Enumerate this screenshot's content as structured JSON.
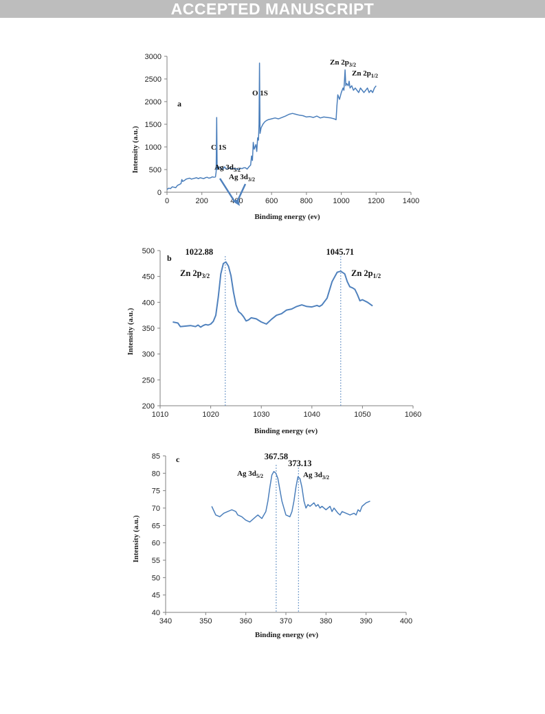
{
  "banner": {
    "text": "ACCEPTED MANUSCRIPT"
  },
  "colors": {
    "series": "#4a7ebb",
    "banner_bg": "#bdbdbd",
    "axis": "#7f7f7f"
  },
  "chart_data": [
    {
      "panel": "a",
      "type": "line",
      "xlabel": "Bindimg energy (ev)",
      "ylabel": "Intensity (a.u.)",
      "xlim": [
        0,
        1400
      ],
      "ylim": [
        0,
        3000
      ],
      "x_ticks": [
        0,
        200,
        400,
        600,
        800,
        1000,
        1200,
        1400
      ],
      "y_ticks": [
        0,
        500,
        1000,
        1500,
        2000,
        2500,
        3000
      ],
      "grid": false,
      "annotations": [
        {
          "text": "C 1S",
          "x": 285
        },
        {
          "text": "O 1S",
          "x": 531
        },
        {
          "text": "Ag 3d5/2",
          "x": 368
        },
        {
          "text": "Ag 3d3/2",
          "x": 374
        },
        {
          "text": "Zn 2p3/2",
          "x": 1022
        },
        {
          "text": "Zn 2p1/2",
          "x": 1045
        }
      ],
      "series": [
        {
          "x": [
            0,
            10,
            20,
            30,
            40,
            50,
            60,
            70,
            80,
            85,
            90,
            100,
            110,
            120,
            130,
            140,
            150,
            160,
            170,
            180,
            190,
            200,
            210,
            220,
            230,
            240,
            250,
            260,
            270,
            278,
            282,
            285,
            288,
            292,
            300,
            310,
            320,
            330,
            340,
            350,
            360,
            370,
            380,
            390,
            400,
            410,
            420,
            430,
            440,
            450,
            460,
            470,
            480,
            485,
            490,
            495,
            500,
            510,
            515,
            520,
            525,
            528,
            531,
            534,
            540,
            550,
            560,
            570,
            580,
            600,
            620,
            640,
            660,
            680,
            700,
            720,
            740,
            760,
            780,
            800,
            820,
            840,
            860,
            880,
            900,
            920,
            940,
            960,
            970,
            975,
            980,
            990,
            1000,
            1010,
            1015,
            1022,
            1026,
            1030,
            1040,
            1045,
            1050,
            1060,
            1070,
            1080,
            1090,
            1100,
            1110,
            1120,
            1130,
            1140,
            1150,
            1160,
            1170,
            1180,
            1190,
            1200
          ],
          "y": [
            60,
            90,
            80,
            120,
            110,
            100,
            150,
            170,
            190,
            280,
            240,
            260,
            290,
            300,
            310,
            290,
            300,
            310,
            320,
            300,
            320,
            310,
            300,
            320,
            330,
            310,
            320,
            340,
            330,
            340,
            450,
            1650,
            500,
            520,
            560,
            520,
            500,
            560,
            510,
            520,
            540,
            520,
            530,
            510,
            520,
            500,
            530,
            520,
            540,
            540,
            510,
            560,
            600,
            800,
            700,
            1100,
            950,
            1050,
            900,
            1200,
            1150,
            1500,
            2850,
            1300,
            1420,
            1500,
            1550,
            1580,
            1600,
            1620,
            1640,
            1620,
            1650,
            1680,
            1720,
            1740,
            1720,
            1700,
            1690,
            1660,
            1670,
            1650,
            1680,
            1640,
            1660,
            1650,
            1640,
            1620,
            1600,
            1900,
            2150,
            2050,
            2200,
            2300,
            2250,
            2700,
            2350,
            2400,
            2350,
            2450,
            2300,
            2350,
            2250,
            2300,
            2250,
            2200,
            2300,
            2250,
            2200,
            2250,
            2300,
            2200,
            2250,
            2200,
            2300,
            2350
          ]
        }
      ]
    },
    {
      "panel": "b",
      "type": "line",
      "xlabel": "Binding energy (ev)",
      "ylabel": "Intensity (a.u.)",
      "xlim": [
        1010,
        1060
      ],
      "ylim": [
        200,
        500
      ],
      "x_ticks": [
        1010,
        1020,
        1030,
        1040,
        1050,
        1060
      ],
      "y_ticks": [
        200,
        250,
        300,
        350,
        400,
        450,
        500
      ],
      "grid": false,
      "peaks": [
        {
          "x": 1022.88,
          "label": "1022.88"
        },
        {
          "x": 1045.71,
          "label": "1045.71"
        }
      ],
      "annotations": [
        {
          "text": "Zn 2p3/2"
        },
        {
          "text": "Zn 2p1/2"
        }
      ],
      "series": [
        {
          "x": [
            1012.5,
            1013.5,
            1014,
            1015,
            1016,
            1017,
            1017.5,
            1018,
            1018.5,
            1019,
            1019.5,
            1020,
            1020.5,
            1021,
            1021.5,
            1022,
            1022.5,
            1023,
            1023.5,
            1024,
            1024.5,
            1025,
            1025.5,
            1026,
            1026.5,
            1027,
            1027.5,
            1028,
            1029,
            1030,
            1030.5,
            1031,
            1032,
            1033,
            1034,
            1035,
            1036,
            1037,
            1038,
            1039,
            1040,
            1041,
            1041.5,
            1042,
            1043,
            1044,
            1045,
            1045.7,
            1046.5,
            1047,
            1047.5,
            1048,
            1048.5,
            1049,
            1049.5,
            1050,
            1051,
            1052
          ],
          "y": [
            362,
            360,
            353,
            354,
            355,
            353,
            356,
            352,
            355,
            357,
            356,
            358,
            363,
            375,
            410,
            455,
            475,
            478,
            470,
            452,
            420,
            395,
            382,
            378,
            372,
            364,
            366,
            370,
            368,
            362,
            360,
            358,
            367,
            375,
            378,
            385,
            387,
            392,
            395,
            392,
            391,
            394,
            392,
            395,
            408,
            440,
            458,
            460,
            455,
            440,
            430,
            428,
            425,
            415,
            403,
            405,
            400,
            393
          ]
        }
      ]
    },
    {
      "panel": "c",
      "type": "line",
      "xlabel": "Binding energy (ev)",
      "ylabel": "Intensity (a.u.)",
      "xlim": [
        340,
        400
      ],
      "ylim": [
        40,
        85
      ],
      "x_ticks": [
        340,
        350,
        360,
        370,
        380,
        390,
        400
      ],
      "y_ticks": [
        40,
        45,
        50,
        55,
        60,
        65,
        70,
        75,
        80,
        85
      ],
      "grid": false,
      "peaks": [
        {
          "x": 367.58,
          "label": "367.58"
        },
        {
          "x": 373.13,
          "label": "373.13"
        }
      ],
      "annotations": [
        {
          "text": "Ag 3d5/2"
        },
        {
          "text": "Ag 3d3/2"
        }
      ],
      "series": [
        {
          "x": [
            351.5,
            352.5,
            353.5,
            354.5,
            355.5,
            356.5,
            357.5,
            358,
            359,
            360,
            361,
            362,
            363,
            363.5,
            364,
            365,
            365.5,
            366,
            366.5,
            367,
            367.5,
            368,
            369,
            370,
            371,
            371.5,
            372,
            372.5,
            373,
            373.5,
            374,
            374.5,
            375,
            375.5,
            376,
            377,
            377.5,
            378,
            378.5,
            379,
            380,
            381,
            381.5,
            382,
            383,
            383.5,
            384,
            385,
            386,
            387,
            387.5,
            388,
            388.5,
            389,
            390,
            391
          ],
          "y": [
            70.5,
            68,
            67.5,
            68.5,
            69,
            69.5,
            69,
            68,
            67.5,
            66.5,
            66,
            67,
            68,
            67.5,
            67,
            69,
            72,
            76,
            79.5,
            80.5,
            80,
            78.5,
            72,
            68,
            67.5,
            69,
            72,
            76,
            79,
            78.5,
            76,
            72,
            70,
            71,
            70.5,
            71.5,
            70.5,
            71,
            70,
            70.5,
            69.5,
            70.5,
            69,
            70,
            68.5,
            68,
            69,
            68.5,
            68,
            68.5,
            68,
            69.5,
            69,
            70.5,
            71.5,
            72
          ]
        }
      ]
    }
  ]
}
